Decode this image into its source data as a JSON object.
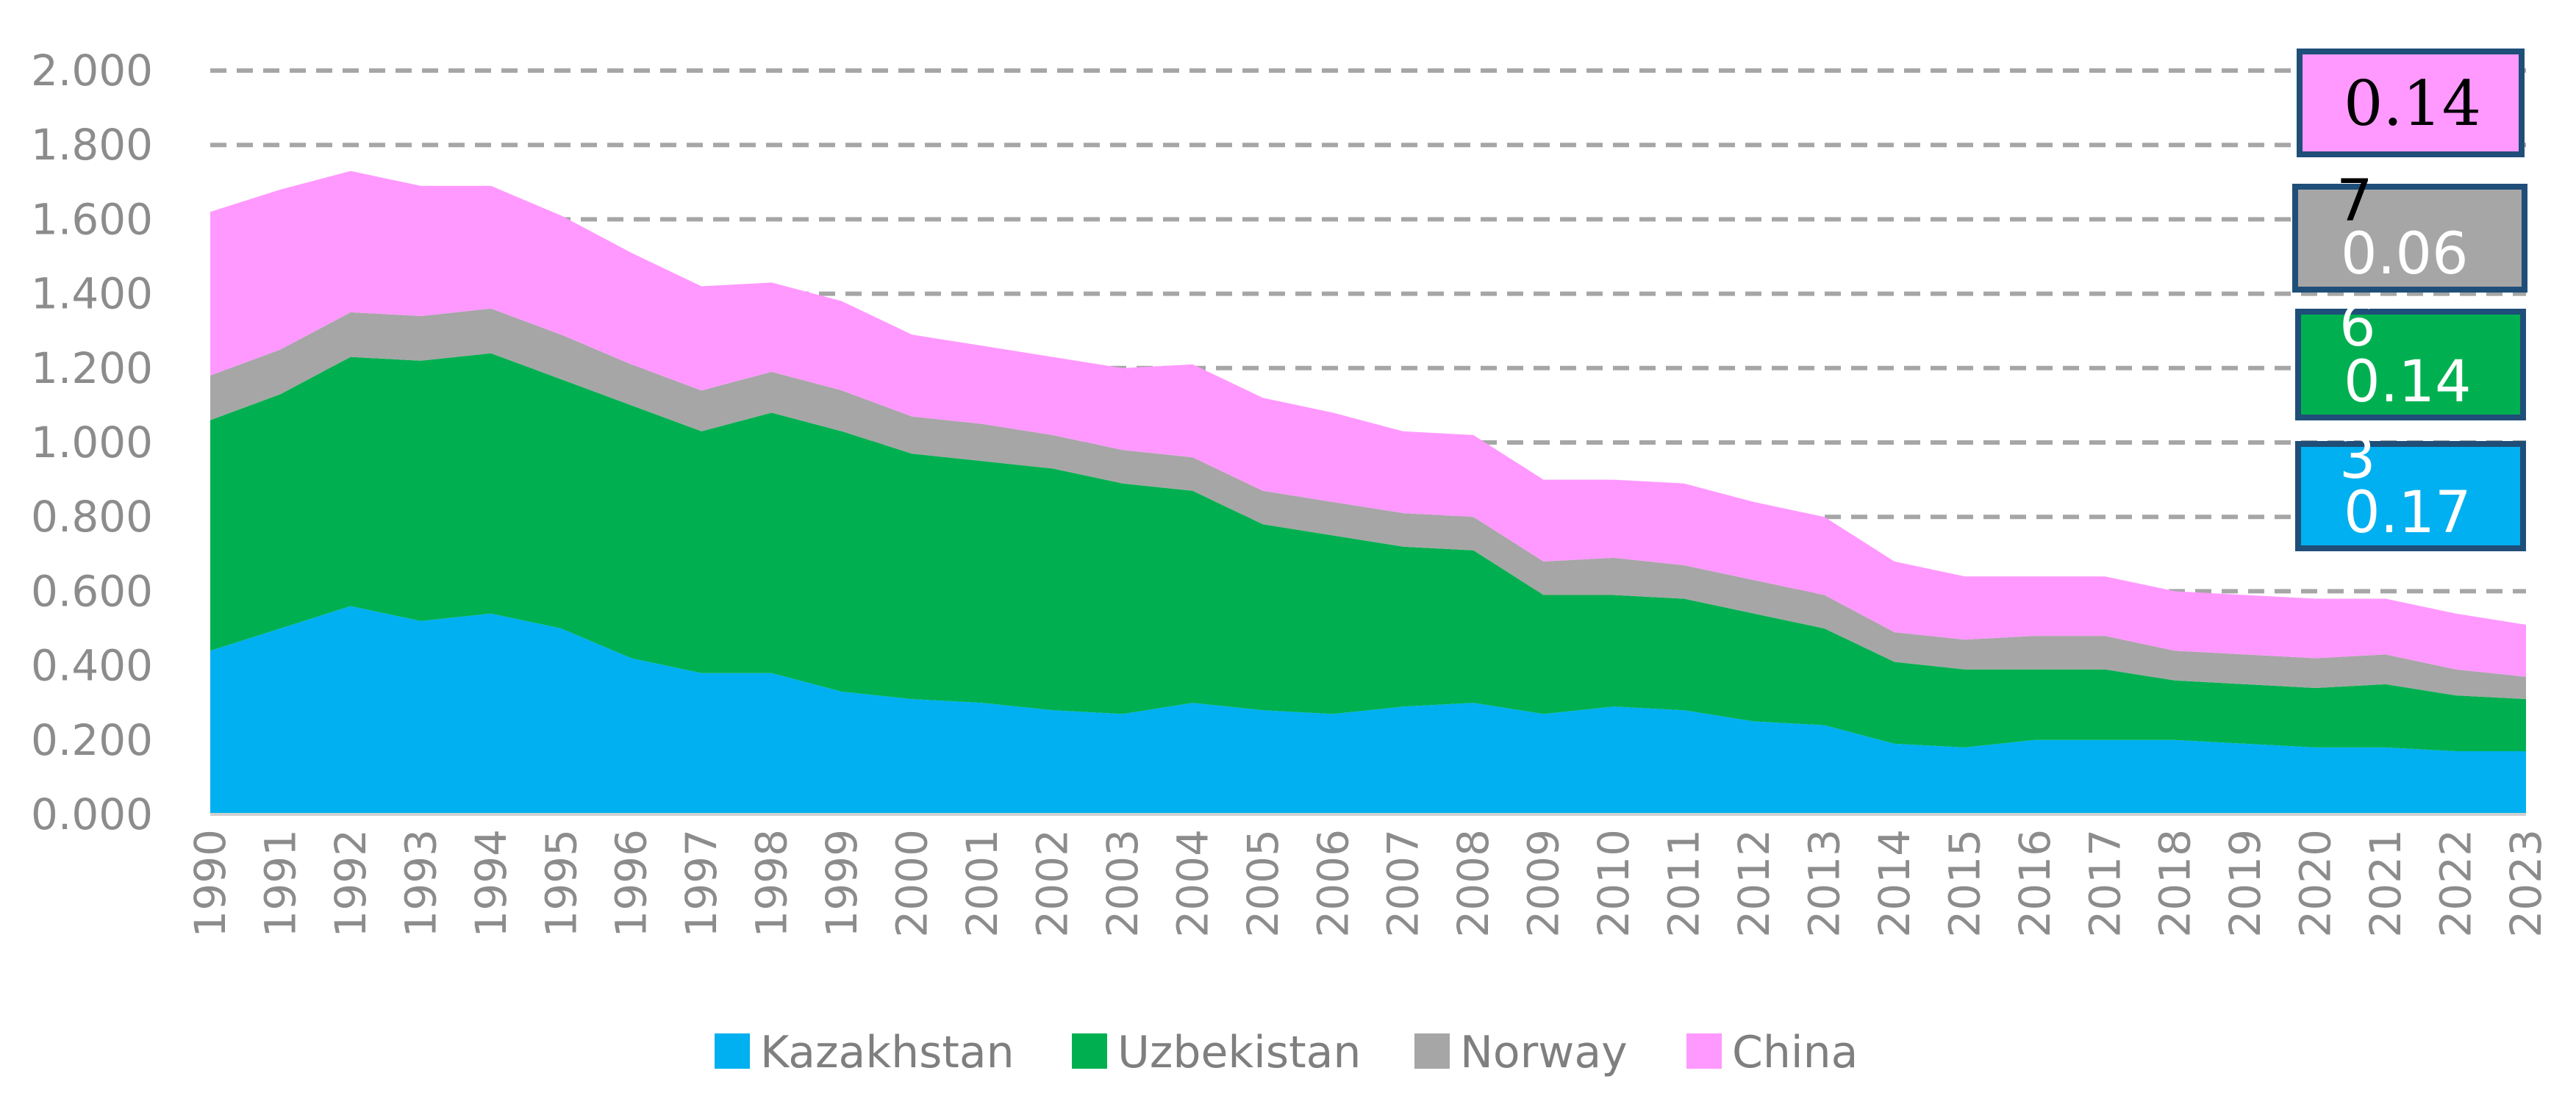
{
  "chart_data": {
    "type": "area",
    "stacked": true,
    "title": "",
    "xlabel": "",
    "ylabel": "",
    "ylim": [
      0,
      2
    ],
    "y_ticks": [
      "0.000",
      "0.200",
      "0.400",
      "0.600",
      "0.800",
      "1.000",
      "1.200",
      "1.400",
      "1.600",
      "1.800",
      "2.000"
    ],
    "grid": "horizontal dashed (0.6 to 2.0)",
    "legend_position": "bottom",
    "categories": [
      "1990",
      "1991",
      "1992",
      "1993",
      "1994",
      "1995",
      "1996",
      "1997",
      "1998",
      "1999",
      "2000",
      "2001",
      "2002",
      "2003",
      "2004",
      "2005",
      "2006",
      "2007",
      "2008",
      "2009",
      "2010",
      "2011",
      "2012",
      "2013",
      "2014",
      "2015",
      "2016",
      "2017",
      "2018",
      "2019",
      "2020",
      "2021",
      "2022",
      "2023"
    ],
    "series": [
      {
        "name": "Kazakhstan",
        "color": "#00b0f0",
        "values": [
          0.44,
          0.5,
          0.56,
          0.52,
          0.54,
          0.5,
          0.42,
          0.38,
          0.38,
          0.33,
          0.31,
          0.3,
          0.28,
          0.27,
          0.3,
          0.28,
          0.27,
          0.29,
          0.3,
          0.27,
          0.29,
          0.28,
          0.25,
          0.24,
          0.19,
          0.18,
          0.2,
          0.2,
          0.2,
          0.19,
          0.18,
          0.18,
          0.17,
          0.17
        ]
      },
      {
        "name": "Uzbekistan",
        "color": "#00b050",
        "values": [
          0.62,
          0.63,
          0.67,
          0.7,
          0.7,
          0.67,
          0.68,
          0.65,
          0.7,
          0.7,
          0.66,
          0.65,
          0.65,
          0.62,
          0.57,
          0.5,
          0.48,
          0.43,
          0.41,
          0.32,
          0.3,
          0.3,
          0.29,
          0.26,
          0.22,
          0.21,
          0.19,
          0.19,
          0.16,
          0.16,
          0.16,
          0.17,
          0.15,
          0.14
        ]
      },
      {
        "name": "Norway",
        "color": "#a6a6a6",
        "values": [
          0.12,
          0.12,
          0.12,
          0.12,
          0.12,
          0.12,
          0.11,
          0.11,
          0.11,
          0.11,
          0.1,
          0.1,
          0.09,
          0.09,
          0.09,
          0.09,
          0.09,
          0.09,
          0.09,
          0.09,
          0.1,
          0.09,
          0.09,
          0.09,
          0.08,
          0.08,
          0.09,
          0.09,
          0.08,
          0.08,
          0.08,
          0.08,
          0.07,
          0.06
        ]
      },
      {
        "name": "China",
        "color": "#ff99ff",
        "values": [
          0.44,
          0.43,
          0.38,
          0.35,
          0.33,
          0.32,
          0.3,
          0.28,
          0.24,
          0.24,
          0.22,
          0.21,
          0.21,
          0.22,
          0.25,
          0.25,
          0.24,
          0.22,
          0.22,
          0.22,
          0.21,
          0.22,
          0.21,
          0.21,
          0.19,
          0.17,
          0.16,
          0.16,
          0.16,
          0.16,
          0.16,
          0.15,
          0.15,
          0.14
        ]
      }
    ],
    "callouts": [
      {
        "series": "China",
        "color": "#ff99ff",
        "text_color": "#000000",
        "lines": [
          "0.14"
        ]
      },
      {
        "series": "Norway",
        "color": "#a6a6a6",
        "text_color": "#ffffff",
        "overflow_text": "7",
        "lines": [
          "0.06"
        ]
      },
      {
        "series": "Uzbekistan",
        "color": "#00b050",
        "text_color": "#ffffff",
        "overflow_text": "6",
        "lines": [
          "0.14"
        ]
      },
      {
        "series": "Kazakhstan",
        "color": "#00b0f0",
        "text_color": "#ffffff",
        "overflow_text": "3",
        "lines": [
          "0.17"
        ]
      }
    ]
  }
}
